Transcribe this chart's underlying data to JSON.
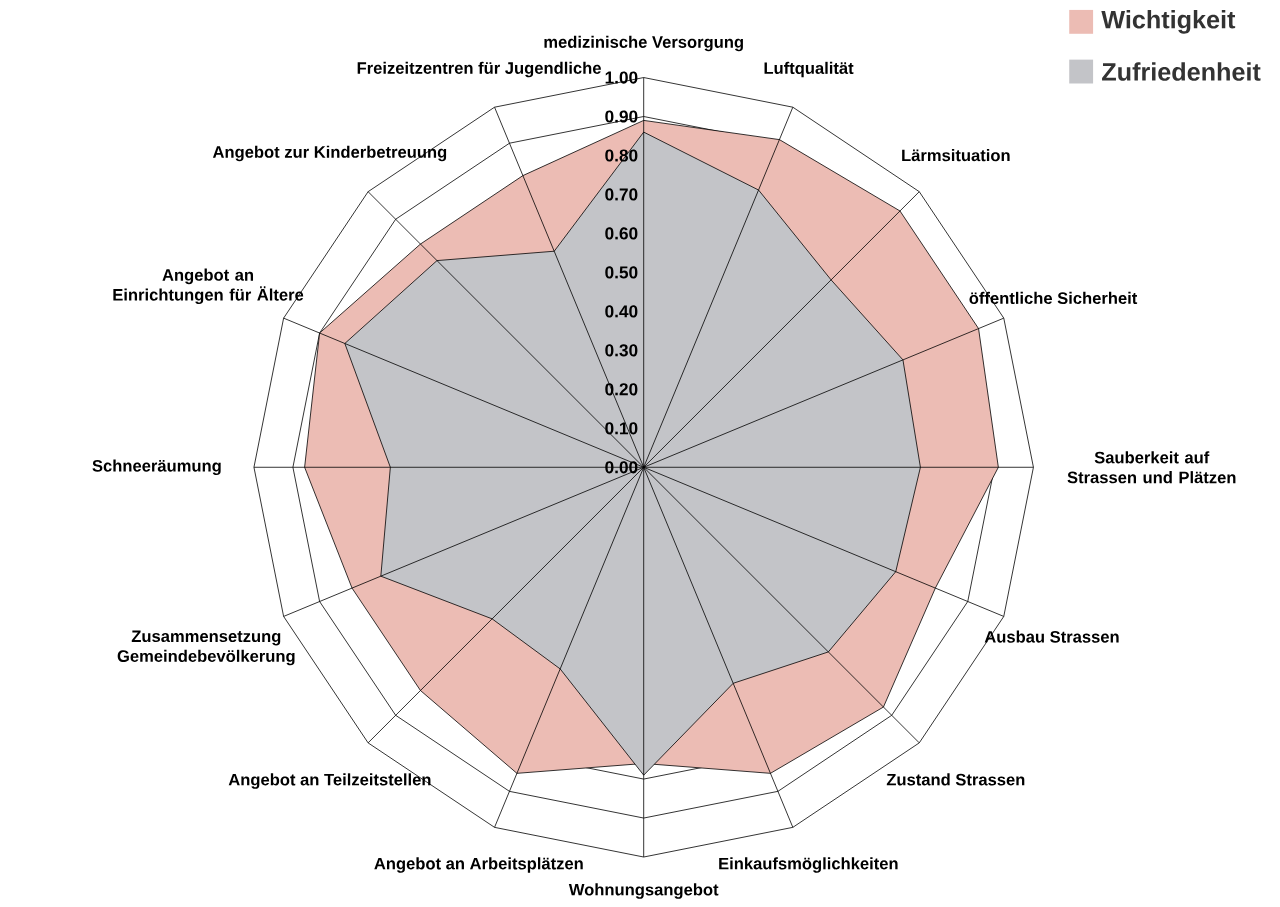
{
  "chart_data": {
    "type": "radar",
    "categories": [
      "medizinische Versorgung",
      "Luftqualität",
      "Lärmsituation",
      "öffentliche Sicherheit",
      "Sauberkeit auf Strassen und Plätzen",
      "Ausbau Strassen",
      "Zustand Strassen",
      "Einkaufsmöglichkeiten",
      "Wohnungsangebot",
      "Angebot an Arbeitsplätzen",
      "Angebot an Teilzeitstellen",
      "Zusammensetzung Gemeindebevölkerung",
      "Schneeräumung",
      "Angebot an Einrichtungen für Ältere",
      "Angebot zur Kinderbetreuung",
      "Freizeitzentren für Jugendliche"
    ],
    "series": [
      {
        "name": "Wichtigkeit",
        "color": "#ecbcb4",
        "values": [
          0.89,
          0.91,
          0.93,
          0.93,
          0.91,
          0.81,
          0.87,
          0.85,
          0.76,
          0.85,
          0.81,
          0.81,
          0.87,
          0.9,
          0.81,
          0.81
        ]
      },
      {
        "name": "Zufriedenheit",
        "color": "#c3c4c8",
        "values": [
          0.86,
          0.77,
          0.68,
          0.72,
          0.71,
          0.7,
          0.67,
          0.6,
          0.79,
          0.56,
          0.55,
          0.73,
          0.65,
          0.83,
          0.75,
          0.6
        ]
      }
    ],
    "ylim": [
      0,
      1
    ],
    "yticks": [
      {
        "value": 0,
        "label": "0.00"
      },
      {
        "value": 0.1,
        "label": "0.10"
      },
      {
        "value": 0.2,
        "label": "0.20"
      },
      {
        "value": 0.3,
        "label": "0.30"
      },
      {
        "value": 0.4,
        "label": "0.40"
      },
      {
        "value": 0.5,
        "label": "0.50"
      },
      {
        "value": 0.6,
        "label": "0.60"
      },
      {
        "value": 0.7,
        "label": "0.70"
      },
      {
        "value": 0.8,
        "label": "0.80"
      },
      {
        "value": 0.9,
        "label": "0.90"
      },
      {
        "value": 1,
        "label": "1.00"
      }
    ],
    "grid": true,
    "legend": "top right",
    "marker": "none"
  }
}
